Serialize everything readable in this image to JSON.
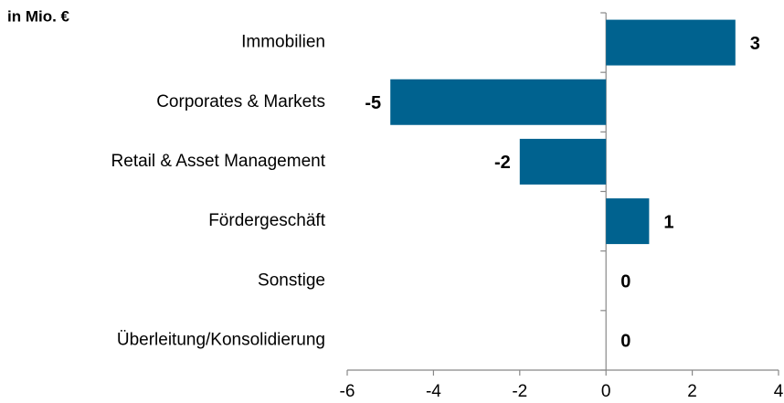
{
  "chart_data": {
    "type": "hbar",
    "axis_label": "in Mio. €",
    "categories": [
      "Immobilien",
      "Corporates & Markets",
      "Retail & Asset Management",
      "Fördergeschäft",
      "Sonstige",
      "Überleitung/Konsolidierung"
    ],
    "values": [
      3,
      -5,
      -2,
      1,
      0,
      0
    ],
    "color": "#00628f",
    "xlim": [
      -6,
      4
    ],
    "xticks": [
      -6,
      -4,
      -2,
      0,
      2,
      4
    ],
    "grid": false
  }
}
